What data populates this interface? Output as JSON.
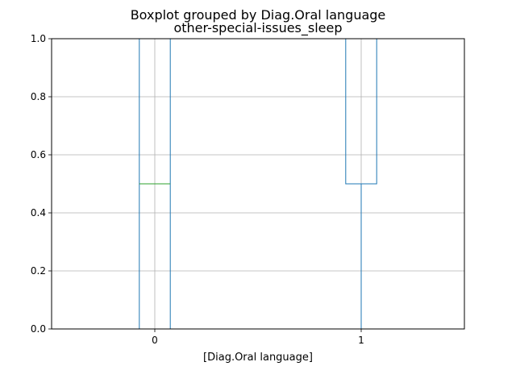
{
  "chart_data": {
    "type": "box",
    "suptitle": "Boxplot grouped by Diag.Oral language",
    "title": "other-special-issues_sleep",
    "xlabel": "[Diag.Oral language]",
    "ylabel": "",
    "categories": [
      "0",
      "1"
    ],
    "ylim": [
      0.0,
      1.0
    ],
    "yticks": [
      "0.0",
      "0.2",
      "0.4",
      "0.6",
      "0.8",
      "1.0"
    ],
    "grid": true,
    "boxes": [
      {
        "category": "0",
        "whislo": 0.0,
        "q1": 0.0,
        "med": 0.5,
        "q3": 1.0,
        "whishi": 1.0
      },
      {
        "category": "1",
        "whislo": 0.0,
        "q1": 0.5,
        "med": 1.0,
        "q3": 1.0,
        "whishi": 1.0
      }
    ],
    "colors": {
      "box": "#1f77b4",
      "median": "#2ca02c",
      "grid": "#b0b0b0"
    }
  }
}
